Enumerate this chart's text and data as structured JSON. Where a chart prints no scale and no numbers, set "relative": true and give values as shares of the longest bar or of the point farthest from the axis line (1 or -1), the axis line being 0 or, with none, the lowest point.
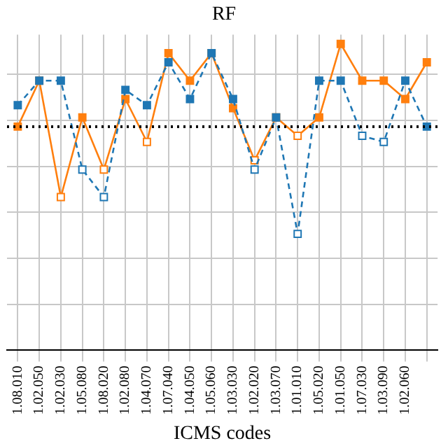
{
  "chart_data": {
    "type": "line",
    "title": "RF",
    "xlabel": "ICMS codes",
    "relative": true,
    "grid": true,
    "legend": false,
    "marker": "square",
    "categories": [
      "1.08.010",
      "1.02.050",
      "1.02.030",
      "1.05.080",
      "1.08.020",
      "1.02.080",
      "1.04.070",
      "1.07.040",
      "1.04.050",
      "1.05.060",
      "1.03.030",
      "1.02.020",
      "1.03.070",
      "1.01.010",
      "1.05.020",
      "1.01.050",
      "1.07.030",
      "1.03.090",
      "1.02.060",
      null
    ],
    "series": [
      {
        "color": "#1f77b4",
        "line_style": "dashed",
        "values": [
          0.8,
          0.88,
          0.88,
          0.59,
          0.5,
          0.85,
          0.8,
          0.94,
          0.82,
          0.97,
          0.82,
          0.59,
          0.76,
          0.38,
          0.88,
          0.88,
          0.7,
          0.68,
          0.88,
          0.73
        ]
      },
      {
        "color": "#ff7f0e",
        "line_style": "solid",
        "values": [
          0.73,
          0.88,
          0.5,
          0.76,
          0.59,
          0.82,
          0.68,
          0.97,
          0.88,
          0.97,
          0.79,
          0.62,
          0.76,
          0.7,
          0.76,
          1,
          0.88,
          0.88,
          0.82,
          0.94
        ]
      }
    ],
    "ref_lines": [
      {
        "axis": "y",
        "value": 0.73,
        "color": "#000000",
        "line_style": "dotted"
      }
    ]
  }
}
